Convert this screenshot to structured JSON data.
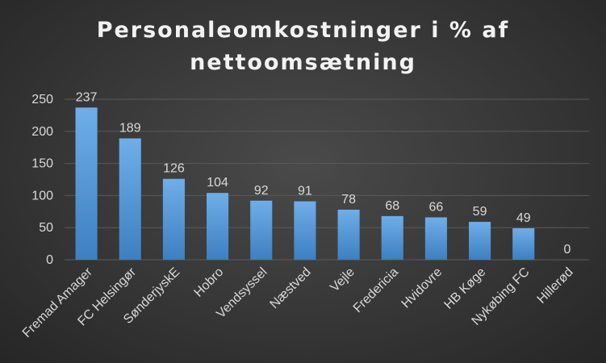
{
  "chart_data": {
    "type": "bar",
    "title": "Personaleomkostninger i % af nettoomsætning",
    "xlabel": "",
    "ylabel": "",
    "ylim": [
      0,
      250
    ],
    "yticks": [
      0,
      50,
      100,
      150,
      200,
      250
    ],
    "grid": true,
    "legend": "none",
    "categories": [
      "Fremad Amager",
      "FC Helsingør",
      "SønderjyskE",
      "Hobro",
      "Vendsyssel",
      "Næstved",
      "Vejle",
      "Fredericia",
      "Hvidovre",
      "HB Køge",
      "Nykøbing FC",
      "Hillerød"
    ],
    "values": [
      237,
      189,
      126,
      104,
      92,
      91,
      78,
      68,
      66,
      59,
      49,
      0
    ],
    "bar_color": "#5b9bd5",
    "bar_color_light": "#6faee8",
    "bar_color_dark": "#3d7fc1"
  }
}
